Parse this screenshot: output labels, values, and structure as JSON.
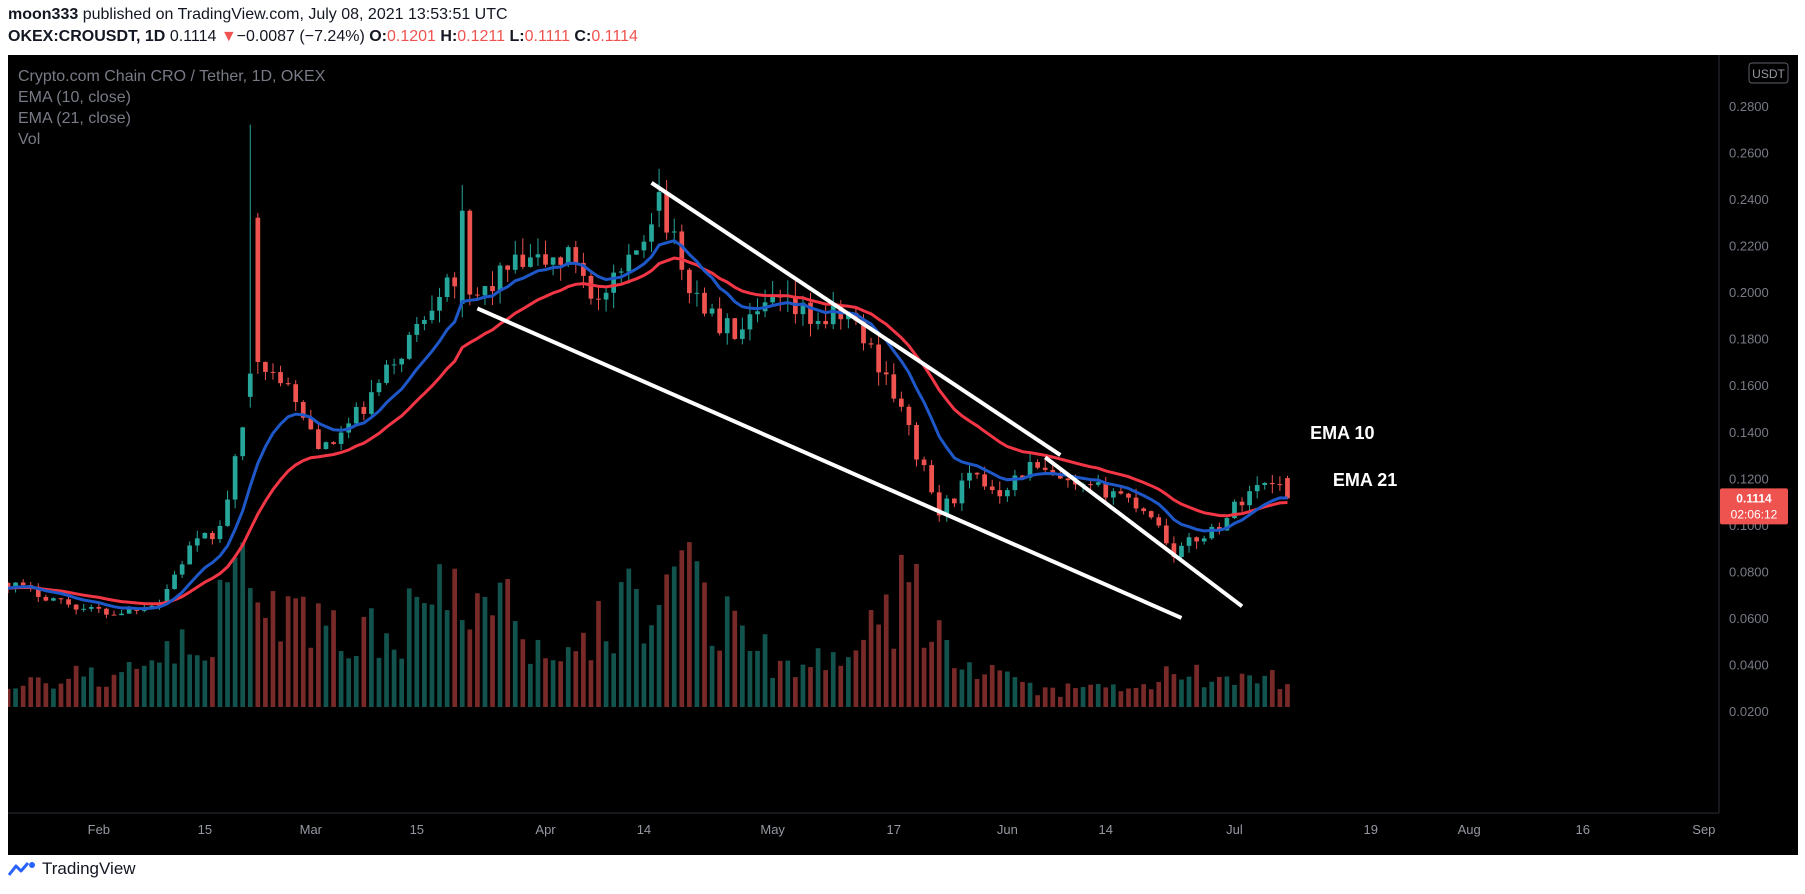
{
  "header": {
    "author": "moon333",
    "published": "published on TradingView.com, July 08, 2021 13:53:51 UTC",
    "symbol": "OKEX:CROUSDT, 1D",
    "last": "0.1114",
    "arrow": "▼",
    "change": "−0.0087 (−7.24%)",
    "o_label": "O:",
    "o_value": "0.1201",
    "h_label": "H:",
    "h_value": "0.1211",
    "l_label": "L:",
    "l_value": "0.1111",
    "c_label": "C:",
    "c_value": "0.1114"
  },
  "legend": {
    "title": "Crypto.com Chain CRO / Tether, 1D, OKEX",
    "ema10": "EMA (10, close)",
    "ema21": "EMA (21, close)",
    "vol": "Vol"
  },
  "footer": {
    "brand": "TradingView"
  },
  "colors": {
    "background": "#000000",
    "up": "#26a69a",
    "down": "#ef5350",
    "ema10": "#1e58c8",
    "ema21": "#f23645",
    "trendline": "#ffffff",
    "price_tag": "#ef5350"
  },
  "chart_data": {
    "type": "candlestick",
    "symbol": "OKEX:CROUSDT",
    "interval": "1D",
    "currency_badge": "USDT",
    "x_ticks": [
      {
        "date": "2021-02-01",
        "label": "Feb"
      },
      {
        "date": "2021-02-15",
        "label": "15"
      },
      {
        "date": "2021-03-01",
        "label": "Mar"
      },
      {
        "date": "2021-03-15",
        "label": "15"
      },
      {
        "date": "2021-04-01",
        "label": "Apr"
      },
      {
        "date": "2021-04-14",
        "label": "14"
      },
      {
        "date": "2021-05-01",
        "label": "May"
      },
      {
        "date": "2021-05-17",
        "label": "17"
      },
      {
        "date": "2021-06-01",
        "label": "Jun"
      },
      {
        "date": "2021-06-14",
        "label": "14"
      },
      {
        "date": "2021-07-01",
        "label": "Jul"
      },
      {
        "date": "2021-07-19",
        "label": "19"
      },
      {
        "date": "2021-08-01",
        "label": "Aug"
      },
      {
        "date": "2021-08-16",
        "label": "16"
      },
      {
        "date": "2021-09-01",
        "label": "Sep"
      }
    ],
    "y_ticks": [
      "0.2800",
      "0.2600",
      "0.2400",
      "0.2200",
      "0.2000",
      "0.1800",
      "0.1600",
      "0.1400",
      "0.1200",
      "0.1000",
      "0.0800",
      "0.0600",
      "0.0400",
      "0.0200"
    ],
    "ylim": [
      0.0,
      0.28
    ],
    "x_start": "2021-01-20",
    "x_end": "2021-09-03",
    "price_label": {
      "value": "0.1114",
      "countdown": "02:06:12"
    },
    "annotations": [
      {
        "text": "EMA 10",
        "date": "2021-07-11",
        "price": 0.1368
      },
      {
        "text": "EMA 21",
        "date": "2021-07-14",
        "price": 0.1168
      }
    ],
    "trendlines": [
      {
        "from": {
          "date": "2021-04-15",
          "price": 0.247
        },
        "to": {
          "date": "2021-06-08",
          "price": 0.13
        }
      },
      {
        "from": {
          "date": "2021-06-06",
          "price": 0.129
        },
        "to": {
          "date": "2021-07-02",
          "price": 0.065
        }
      },
      {
        "from": {
          "date": "2021-03-23",
          "price": 0.193
        },
        "to": {
          "date": "2021-06-24",
          "price": 0.06
        }
      }
    ],
    "close_anchors": [
      [
        "2021-01-20",
        0.075
      ],
      [
        "2021-01-30",
        0.064
      ],
      [
        "2021-02-03",
        0.062
      ],
      [
        "2021-02-09",
        0.067
      ],
      [
        "2021-02-13",
        0.09
      ],
      [
        "2021-02-17",
        0.098
      ],
      [
        "2021-02-20",
        0.14
      ],
      [
        "2021-02-23",
        0.162
      ],
      [
        "2021-02-25",
        0.165
      ],
      [
        "2021-02-28",
        0.145
      ],
      [
        "2021-03-03",
        0.132
      ],
      [
        "2021-03-08",
        0.15
      ],
      [
        "2021-03-13",
        0.175
      ],
      [
        "2021-03-16",
        0.19
      ],
      [
        "2021-03-19",
        0.21
      ],
      [
        "2021-03-22",
        0.195
      ],
      [
        "2021-03-27",
        0.21
      ],
      [
        "2021-04-01",
        0.213
      ],
      [
        "2021-04-05",
        0.215
      ],
      [
        "2021-04-08",
        0.195
      ],
      [
        "2021-04-12",
        0.21
      ],
      [
        "2021-04-16",
        0.243
      ],
      [
        "2021-04-19",
        0.208
      ],
      [
        "2021-04-24",
        0.185
      ],
      [
        "2021-04-27",
        0.182
      ],
      [
        "2021-05-01",
        0.195
      ],
      [
        "2021-05-07",
        0.188
      ],
      [
        "2021-05-11",
        0.19
      ],
      [
        "2021-05-16",
        0.165
      ],
      [
        "2021-05-19",
        0.14
      ],
      [
        "2021-05-23",
        0.105
      ],
      [
        "2021-05-27",
        0.12
      ],
      [
        "2021-05-31",
        0.115
      ],
      [
        "2021-06-04",
        0.125
      ],
      [
        "2021-06-10",
        0.115
      ],
      [
        "2021-06-15",
        0.115
      ],
      [
        "2021-06-20",
        0.105
      ],
      [
        "2021-06-23",
        0.088
      ],
      [
        "2021-06-29",
        0.1
      ],
      [
        "2021-07-03",
        0.115
      ],
      [
        "2021-07-07",
        0.1201
      ],
      [
        "2021-07-08",
        0.1114
      ]
    ],
    "spikes": [
      {
        "date": "2021-02-21",
        "high": 0.272,
        "open": 0.155,
        "close": 0.165
      },
      {
        "date": "2021-02-22",
        "high": 0.234,
        "open": 0.232,
        "close": 0.17
      },
      {
        "date": "2021-03-21",
        "high": 0.246,
        "open": 0.195,
        "close": 0.235
      },
      {
        "date": "2021-04-16",
        "high": 0.253,
        "open": 0.235,
        "close": 0.243
      }
    ],
    "volume": {
      "scale_max": 0.07,
      "anchors": [
        [
          "2021-01-20",
          0.012
        ],
        [
          "2021-02-05",
          0.014
        ],
        [
          "2021-02-15",
          0.028
        ],
        [
          "2021-02-21",
          0.063
        ],
        [
          "2021-02-26",
          0.038
        ],
        [
          "2021-03-05",
          0.03
        ],
        [
          "2021-03-17",
          0.04
        ],
        [
          "2021-03-21",
          0.056
        ],
        [
          "2021-04-01",
          0.026
        ],
        [
          "2021-04-09",
          0.035
        ],
        [
          "2021-04-15",
          0.05
        ],
        [
          "2021-04-20",
          0.058
        ],
        [
          "2021-04-28",
          0.025
        ],
        [
          "2021-05-10",
          0.016
        ],
        [
          "2021-05-19",
          0.05
        ],
        [
          "2021-05-25",
          0.018
        ],
        [
          "2021-06-05",
          0.007
        ],
        [
          "2021-06-20",
          0.008
        ],
        [
          "2021-06-23",
          0.016
        ],
        [
          "2021-07-01",
          0.01
        ],
        [
          "2021-07-08",
          0.012
        ]
      ]
    }
  }
}
